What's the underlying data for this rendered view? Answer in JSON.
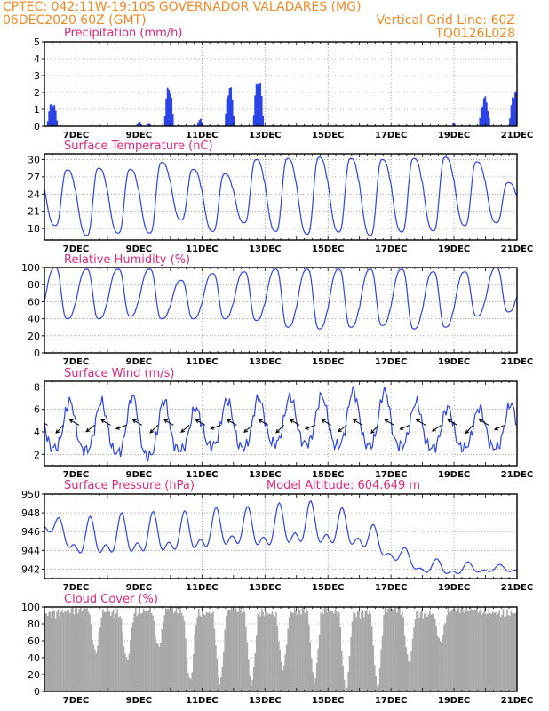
{
  "header": {
    "line1_left": "CPTEC:   042:11W-19:10S   GOVERNADOR VALADARES (MG)",
    "line2_left": "06DEC2020 60Z (GMT)",
    "line2_right": "Vertical Grid Line: 60Z",
    "line3_right": "TQ0126L028"
  },
  "colors": {
    "header": "#f08a24",
    "title": "#e0287a",
    "line": "#2a44e6",
    "bar": "#2a44e6",
    "cloud": "#a8a8a8",
    "wind_arrow": "#000000"
  },
  "x_axis": {
    "tick_labels": [
      "7DEC",
      "9DEC",
      "11DEC",
      "13DEC",
      "15DEC",
      "17DEC",
      "19DEC",
      "21DEC"
    ],
    "start_day": 6.0,
    "end_day": 21.0
  },
  "chart_data": [
    {
      "type": "bar",
      "title": "Precipitation (mm/h)",
      "ylim": [
        0,
        5
      ],
      "yticks": [
        "0",
        "1",
        "2",
        "3",
        "4",
        "5"
      ],
      "events": [
        {
          "day": 6.08,
          "peak": 1.5,
          "dur": 0.35
        },
        {
          "day": 8.92,
          "peak": 0.3,
          "dur": 0.15
        },
        {
          "day": 9.25,
          "peak": 0.2,
          "dur": 0.12
        },
        {
          "day": 9.8,
          "peak": 2.5,
          "dur": 0.28
        },
        {
          "day": 10.85,
          "peak": 0.5,
          "dur": 0.15
        },
        {
          "day": 11.73,
          "peak": 2.5,
          "dur": 0.28
        },
        {
          "day": 12.62,
          "peak": 3.0,
          "dur": 0.35
        },
        {
          "day": 18.95,
          "peak": 0.3,
          "dur": 0.1
        },
        {
          "day": 19.8,
          "peak": 1.8,
          "dur": 0.35
        },
        {
          "day": 20.75,
          "peak": 2.2,
          "dur": 0.38
        }
      ]
    },
    {
      "type": "line",
      "title": "Surface Temperature (nC)",
      "ylim": [
        16,
        31
      ],
      "yticks": [
        "18",
        "21",
        "24",
        "27",
        "30"
      ],
      "daily_max": [
        28.2,
        28.5,
        28.3,
        29.5,
        28.3,
        27.5,
        30.0,
        30.2,
        30.4,
        30.2,
        30.0,
        30.2,
        30.4,
        29.6,
        26.0
      ],
      "daily_min": [
        18.5,
        16.8,
        17.2,
        17.2,
        19.5,
        17.5,
        19.0,
        17.5,
        17.0,
        17.4,
        16.8,
        17.4,
        17.6,
        18.5,
        19.0
      ]
    },
    {
      "type": "line",
      "title": "Relative Humidity (%)",
      "ylim": [
        0,
        100
      ],
      "yticks": [
        "0",
        "20",
        "40",
        "60",
        "80",
        "100"
      ],
      "daily_max": [
        100,
        98,
        98,
        98,
        85,
        93,
        95,
        98,
        98,
        98,
        98,
        98,
        95,
        95,
        100
      ],
      "daily_min": [
        40,
        40,
        43,
        40,
        40,
        40,
        38,
        30,
        28,
        30,
        32,
        28,
        30,
        43,
        48
      ]
    },
    {
      "type": "line",
      "title": "Surface Wind (m/s)",
      "ylim": [
        1,
        8.5
      ],
      "yticks": [
        "2",
        "4",
        "6",
        "8"
      ],
      "series": [
        6.8,
        6.5,
        7.2,
        7.1,
        5.9,
        6.8,
        7.0,
        7.2,
        7.1,
        7.6,
        7.9,
        6.8,
        6.2,
        6.0,
        6.5
      ],
      "daily_min": [
        2.6,
        2.4,
        2.2,
        1.8,
        2.4,
        2.8,
        2.6,
        3.0,
        3.0,
        2.8,
        2.8,
        2.8,
        2.6,
        2.6,
        2.6
      ],
      "arrows_y": 4.6
    },
    {
      "type": "line",
      "title": "Surface Pressure (hPa)",
      "subtitle": "Model Altitude: 604.649  m",
      "ylim": [
        941,
        950
      ],
      "yticks": [
        "942",
        "944",
        "946",
        "948",
        "950"
      ],
      "daily_max": [
        947.5,
        947.5,
        947.8,
        948.3,
        948.0,
        948.5,
        948.7,
        948.7,
        949.5,
        949.0,
        948.0,
        945.2,
        943.2,
        943.0,
        942.5
      ],
      "daily_min": [
        946.0,
        942.5,
        942.5,
        942.5,
        942.8,
        943.0,
        943.5,
        943.2,
        943.5,
        943.5,
        943.5,
        942.5,
        941.2,
        941.0,
        941.5
      ]
    },
    {
      "type": "area",
      "title": "Cloud Cover (%)",
      "ylim": [
        0,
        100
      ],
      "yticks": [
        "0",
        "20",
        "40",
        "60",
        "80",
        "100"
      ],
      "typical": 95,
      "clear_spells": [
        {
          "day": 7.6,
          "min": 45
        },
        {
          "day": 8.6,
          "min": 40
        },
        {
          "day": 9.6,
          "min": 50
        },
        {
          "day": 10.6,
          "min": 15
        },
        {
          "day": 11.55,
          "min": 10
        },
        {
          "day": 12.55,
          "min": 8
        },
        {
          "day": 13.55,
          "min": 30
        },
        {
          "day": 14.55,
          "min": 10
        },
        {
          "day": 15.55,
          "min": 5
        },
        {
          "day": 16.55,
          "min": 5
        },
        {
          "day": 17.55,
          "min": 35
        },
        {
          "day": 18.55,
          "min": 60
        }
      ]
    }
  ]
}
